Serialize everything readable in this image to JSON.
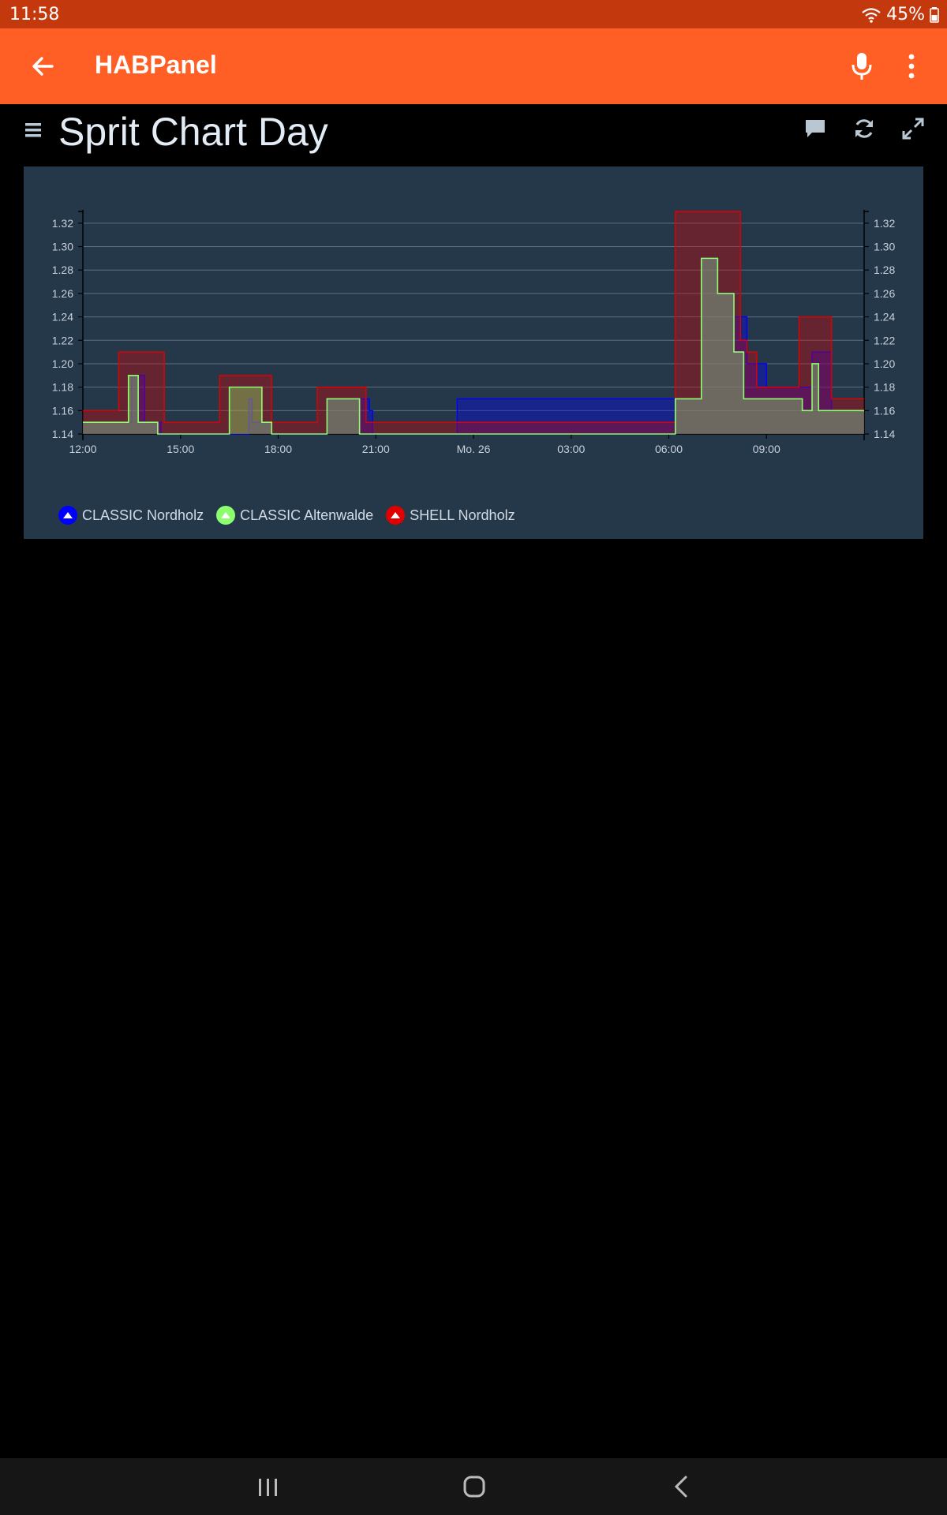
{
  "status_bar": {
    "time": "11:58",
    "battery": "45%"
  },
  "app_bar": {
    "title": "HABPanel"
  },
  "panel": {
    "title": "Sprit Chart Day"
  },
  "icons": {
    "back": "arrow-left-icon",
    "mic": "microphone-icon",
    "more": "more-vertical-icon",
    "menu": "hamburger-menu-icon",
    "comment": "comment-icon",
    "refresh": "refresh-icon",
    "fullscreen": "fullscreen-icon",
    "wifi": "wifi-icon",
    "battery": "battery-icon",
    "recents": "recent-apps-icon",
    "home": "home-icon",
    "nav_back": "nav-back-icon"
  },
  "colors": {
    "status_bar": "#c4380e",
    "app_bar": "#ff5f24",
    "widget_bg": "#25384a"
  },
  "chart_data": {
    "type": "area",
    "step": true,
    "x_tick_labels": [
      "12:00",
      "15:00",
      "18:00",
      "21:00",
      "Mo. 26",
      "03:00",
      "06:00",
      "09:00"
    ],
    "x_tick_hours": [
      0,
      3,
      6,
      9,
      12,
      15,
      18,
      21
    ],
    "xlim": [
      0,
      24
    ],
    "ylim": [
      1.14,
      1.33
    ],
    "y_ticks": [
      "1.14",
      "1.16",
      "1.18",
      "1.20",
      "1.22",
      "1.24",
      "1.26",
      "1.28",
      "1.30",
      "1.32"
    ],
    "grid": true,
    "legend_position": "bottom-left",
    "series": [
      {
        "name": "CLASSIC Nordholz",
        "color": "#0000ff",
        "points": [
          [
            0,
            1.15
          ],
          [
            1.5,
            1.19
          ],
          [
            1.9,
            1.15
          ],
          [
            2.4,
            1.14
          ],
          [
            5.1,
            1.17
          ],
          [
            5.2,
            1.15
          ],
          [
            5.8,
            1.14
          ],
          [
            7.5,
            1.17
          ],
          [
            8.8,
            1.16
          ],
          [
            8.9,
            1.14
          ],
          [
            11.5,
            1.17
          ],
          [
            18.2,
            1.17
          ],
          [
            19.0,
            1.29
          ],
          [
            19.5,
            1.26
          ],
          [
            20.0,
            1.24
          ],
          [
            20.4,
            1.2
          ],
          [
            21.0,
            1.18
          ],
          [
            22.4,
            1.21
          ],
          [
            23.0,
            1.16
          ],
          [
            24,
            1.16
          ]
        ]
      },
      {
        "name": "CLASSIC Altenwalde",
        "color": "#8cff6e",
        "points": [
          [
            0,
            1.15
          ],
          [
            1.4,
            1.19
          ],
          [
            1.7,
            1.15
          ],
          [
            2.3,
            1.14
          ],
          [
            4.5,
            1.18
          ],
          [
            5.5,
            1.15
          ],
          [
            5.8,
            1.14
          ],
          [
            7.5,
            1.17
          ],
          [
            8.5,
            1.14
          ],
          [
            18.2,
            1.17
          ],
          [
            19.0,
            1.29
          ],
          [
            19.5,
            1.26
          ],
          [
            20.0,
            1.21
          ],
          [
            20.3,
            1.17
          ],
          [
            22.1,
            1.16
          ],
          [
            22.4,
            1.2
          ],
          [
            22.6,
            1.16
          ],
          [
            24,
            1.16
          ]
        ]
      },
      {
        "name": "SHELL Nordholz",
        "color": "#e00000",
        "points": [
          [
            0,
            1.16
          ],
          [
            1.1,
            1.21
          ],
          [
            2.5,
            1.15
          ],
          [
            4.2,
            1.19
          ],
          [
            5.8,
            1.15
          ],
          [
            7.2,
            1.18
          ],
          [
            8.7,
            1.15
          ],
          [
            18.2,
            1.33
          ],
          [
            20.2,
            1.22
          ],
          [
            20.4,
            1.21
          ],
          [
            20.7,
            1.18
          ],
          [
            22.0,
            1.24
          ],
          [
            23.0,
            1.17
          ],
          [
            24,
            1.17
          ]
        ]
      }
    ]
  }
}
